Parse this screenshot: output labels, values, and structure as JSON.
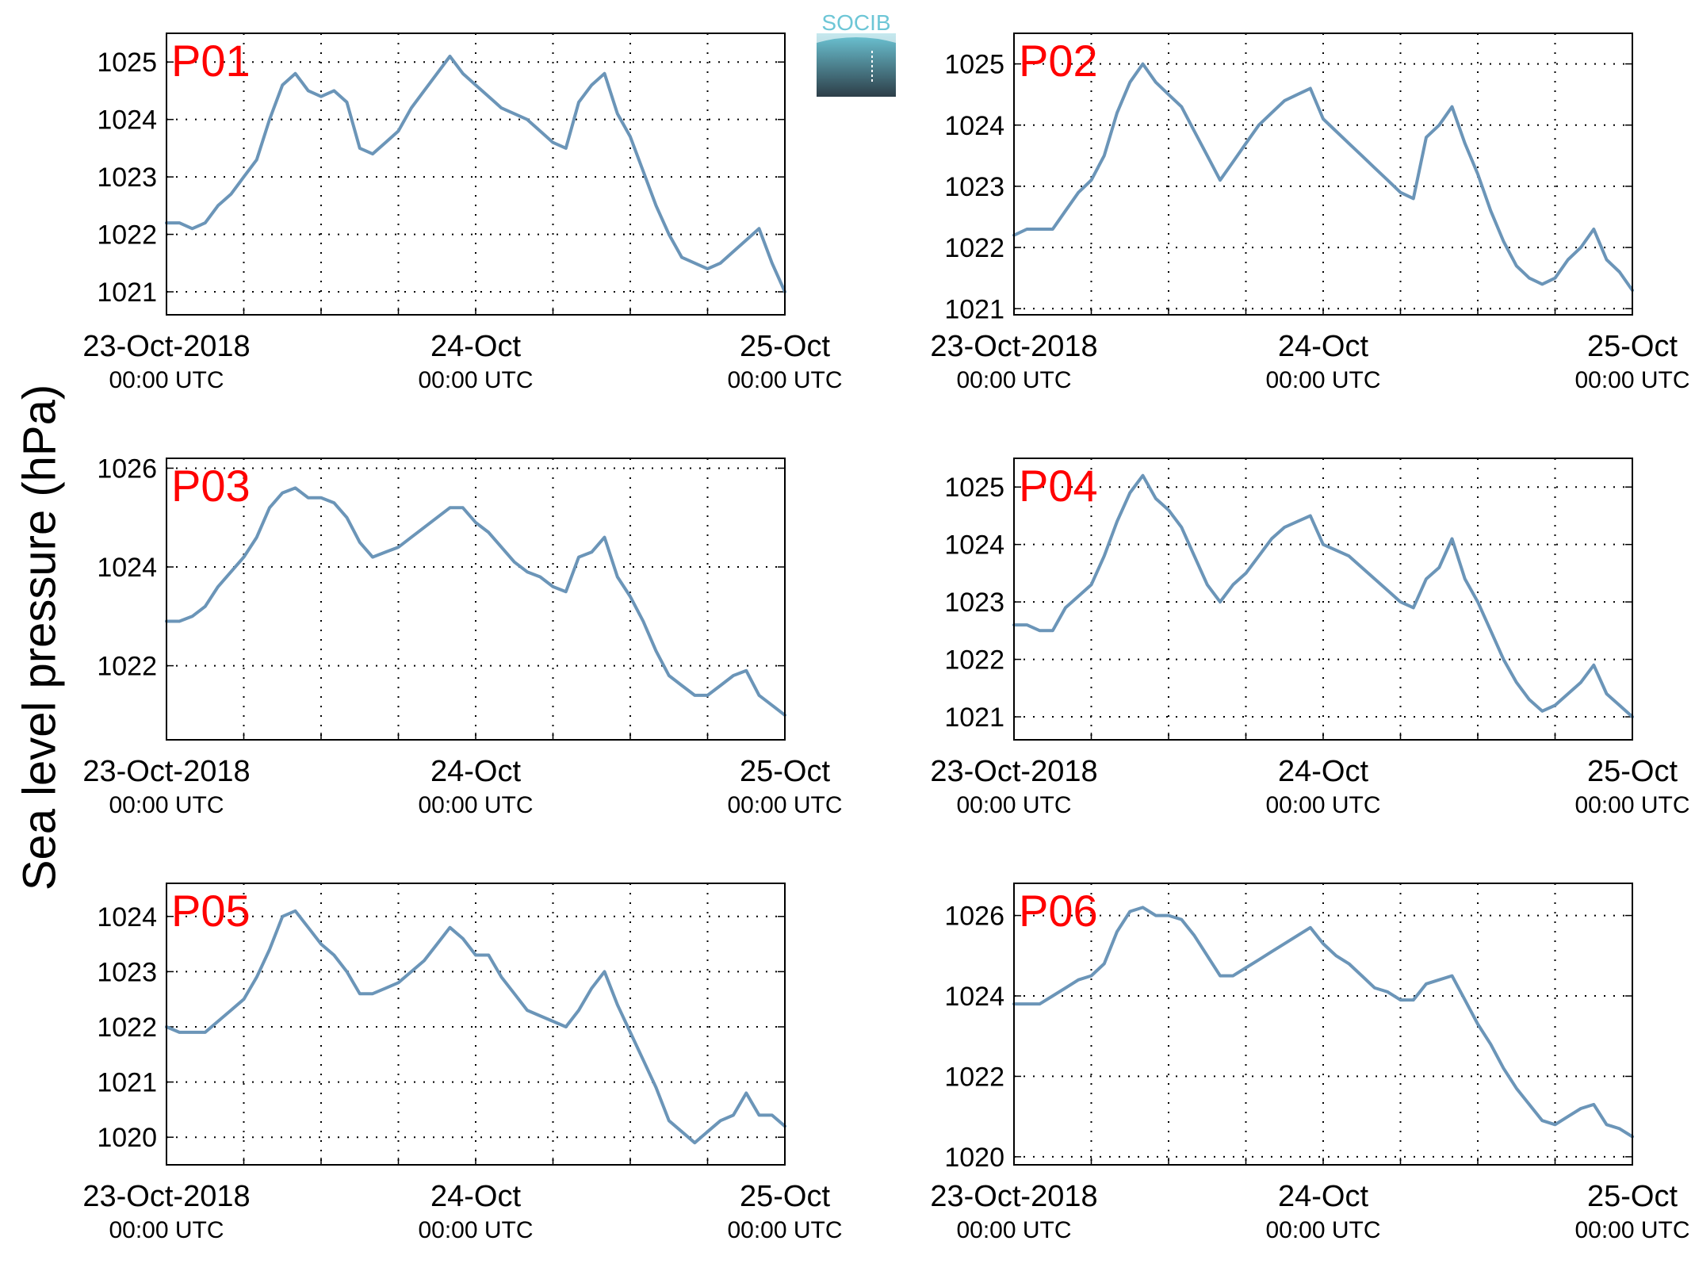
{
  "ylabel": "Sea level pressure (hPa)",
  "logo_text": "SOCIB",
  "colors": {
    "line": "#6b95b8",
    "station_label": "#ff0000",
    "logo_top": "#6dc6d6",
    "logo_bottom": "#2d3e48"
  },
  "x_tick_labels": [
    {
      "line1": "23-Oct-2018",
      "line2": "00:00 UTC"
    },
    {
      "line1": "24-Oct",
      "line2": "00:00 UTC"
    },
    {
      "line1": "25-Oct",
      "line2": "00:00 UTC"
    }
  ],
  "chart_data": [
    {
      "type": "line",
      "title": "P01",
      "xlim": [
        0,
        48
      ],
      "ylim": [
        1020.6,
        1025.5
      ],
      "yticks": [
        1021,
        1022,
        1023,
        1024,
        1025
      ],
      "grid": true,
      "series": [
        {
          "x": [
            0,
            1,
            2,
            3,
            4,
            5,
            6,
            7,
            8,
            9,
            10,
            11,
            12,
            13,
            14,
            15,
            16,
            17,
            18,
            19,
            20,
            21,
            22,
            23,
            24,
            25,
            26,
            27,
            28,
            29,
            30,
            31,
            32,
            33,
            34,
            35,
            36,
            37,
            38,
            39,
            40,
            41,
            42,
            43,
            44,
            45,
            46,
            47,
            48
          ],
          "values": [
            1022.2,
            1022.2,
            1022.1,
            1022.2,
            1022.5,
            1022.7,
            1023.0,
            1023.3,
            1024.0,
            1024.6,
            1024.8,
            1024.5,
            1024.4,
            1024.5,
            1024.3,
            1023.5,
            1023.4,
            1023.6,
            1023.8,
            1024.2,
            1024.5,
            1024.8,
            1025.1,
            1024.8,
            1024.6,
            1024.4,
            1024.2,
            1024.1,
            1024.0,
            1023.8,
            1023.6,
            1023.5,
            1024.3,
            1024.6,
            1024.8,
            1024.1,
            1023.7,
            1023.1,
            1022.5,
            1022.0,
            1021.6,
            1021.5,
            1021.4,
            1021.5,
            1021.7,
            1021.9,
            1022.1,
            1021.5,
            1021.0
          ]
        }
      ]
    },
    {
      "type": "line",
      "title": "P02",
      "xlim": [
        0,
        48
      ],
      "ylim": [
        1020.9,
        1025.5
      ],
      "yticks": [
        1021,
        1022,
        1023,
        1024,
        1025
      ],
      "grid": true,
      "series": [
        {
          "x": [
            0,
            1,
            2,
            3,
            4,
            5,
            6,
            7,
            8,
            9,
            10,
            11,
            12,
            13,
            14,
            15,
            16,
            17,
            18,
            19,
            20,
            21,
            22,
            23,
            24,
            25,
            26,
            27,
            28,
            29,
            30,
            31,
            32,
            33,
            34,
            35,
            36,
            37,
            38,
            39,
            40,
            41,
            42,
            43,
            44,
            45,
            46,
            47,
            48
          ],
          "values": [
            1022.2,
            1022.3,
            1022.3,
            1022.3,
            1022.6,
            1022.9,
            1023.1,
            1023.5,
            1024.2,
            1024.7,
            1025.0,
            1024.7,
            1024.5,
            1024.3,
            1023.9,
            1023.5,
            1023.1,
            1023.4,
            1023.7,
            1024.0,
            1024.2,
            1024.4,
            1024.5,
            1024.6,
            1024.1,
            1023.9,
            1023.7,
            1023.5,
            1023.3,
            1023.1,
            1022.9,
            1022.8,
            1023.8,
            1024.0,
            1024.3,
            1023.7,
            1023.2,
            1022.6,
            1022.1,
            1021.7,
            1021.5,
            1021.4,
            1021.5,
            1021.8,
            1022.0,
            1022.3,
            1021.8,
            1021.6,
            1021.3
          ]
        }
      ]
    },
    {
      "type": "line",
      "title": "P03",
      "xlim": [
        0,
        48
      ],
      "ylim": [
        1020.5,
        1026.2
      ],
      "yticks": [
        1022,
        1024,
        1026
      ],
      "grid": true,
      "series": [
        {
          "x": [
            0,
            1,
            2,
            3,
            4,
            5,
            6,
            7,
            8,
            9,
            10,
            11,
            12,
            13,
            14,
            15,
            16,
            17,
            18,
            19,
            20,
            21,
            22,
            23,
            24,
            25,
            26,
            27,
            28,
            29,
            30,
            31,
            32,
            33,
            34,
            35,
            36,
            37,
            38,
            39,
            40,
            41,
            42,
            43,
            44,
            45,
            46,
            47,
            48
          ],
          "values": [
            1022.9,
            1022.9,
            1023.0,
            1023.2,
            1023.6,
            1023.9,
            1024.2,
            1024.6,
            1025.2,
            1025.5,
            1025.6,
            1025.4,
            1025.4,
            1025.3,
            1025.0,
            1024.5,
            1024.2,
            1024.3,
            1024.4,
            1024.6,
            1024.8,
            1025.0,
            1025.2,
            1025.2,
            1024.9,
            1024.7,
            1024.4,
            1024.1,
            1023.9,
            1023.8,
            1023.6,
            1023.5,
            1024.2,
            1024.3,
            1024.6,
            1023.8,
            1023.4,
            1022.9,
            1022.3,
            1021.8,
            1021.6,
            1021.4,
            1021.4,
            1021.6,
            1021.8,
            1021.9,
            1021.4,
            1021.2,
            1021.0
          ]
        }
      ]
    },
    {
      "type": "line",
      "title": "P04",
      "xlim": [
        0,
        48
      ],
      "ylim": [
        1020.6,
        1025.5
      ],
      "yticks": [
        1021,
        1022,
        1023,
        1024,
        1025
      ],
      "grid": true,
      "series": [
        {
          "x": [
            0,
            1,
            2,
            3,
            4,
            5,
            6,
            7,
            8,
            9,
            10,
            11,
            12,
            13,
            14,
            15,
            16,
            17,
            18,
            19,
            20,
            21,
            22,
            23,
            24,
            25,
            26,
            27,
            28,
            29,
            30,
            31,
            32,
            33,
            34,
            35,
            36,
            37,
            38,
            39,
            40,
            41,
            42,
            43,
            44,
            45,
            46,
            47,
            48
          ],
          "values": [
            1022.6,
            1022.6,
            1022.5,
            1022.5,
            1022.9,
            1023.1,
            1023.3,
            1023.8,
            1024.4,
            1024.9,
            1025.2,
            1024.8,
            1024.6,
            1024.3,
            1023.8,
            1023.3,
            1023.0,
            1023.3,
            1023.5,
            1023.8,
            1024.1,
            1024.3,
            1024.4,
            1024.5,
            1024.0,
            1023.9,
            1023.8,
            1023.6,
            1023.4,
            1023.2,
            1023.0,
            1022.9,
            1023.4,
            1023.6,
            1024.1,
            1023.4,
            1023.0,
            1022.5,
            1022.0,
            1021.6,
            1021.3,
            1021.1,
            1021.2,
            1021.4,
            1021.6,
            1021.9,
            1021.4,
            1021.2,
            1021.0
          ]
        }
      ]
    },
    {
      "type": "line",
      "title": "P05",
      "xlim": [
        0,
        48
      ],
      "ylim": [
        1019.5,
        1024.6
      ],
      "yticks": [
        1020,
        1021,
        1022,
        1023,
        1024
      ],
      "grid": true,
      "series": [
        {
          "x": [
            0,
            1,
            2,
            3,
            4,
            5,
            6,
            7,
            8,
            9,
            10,
            11,
            12,
            13,
            14,
            15,
            16,
            17,
            18,
            19,
            20,
            21,
            22,
            23,
            24,
            25,
            26,
            27,
            28,
            29,
            30,
            31,
            32,
            33,
            34,
            35,
            36,
            37,
            38,
            39,
            40,
            41,
            42,
            43,
            44,
            45,
            46,
            47,
            48
          ],
          "values": [
            1022.0,
            1021.9,
            1021.9,
            1021.9,
            1022.1,
            1022.3,
            1022.5,
            1022.9,
            1023.4,
            1024.0,
            1024.1,
            1023.8,
            1023.5,
            1023.3,
            1023.0,
            1022.6,
            1022.6,
            1022.7,
            1022.8,
            1023.0,
            1023.2,
            1023.5,
            1023.8,
            1023.6,
            1023.3,
            1023.3,
            1022.9,
            1022.6,
            1022.3,
            1022.2,
            1022.1,
            1022.0,
            1022.3,
            1022.7,
            1023.0,
            1022.4,
            1021.9,
            1021.4,
            1020.9,
            1020.3,
            1020.1,
            1019.9,
            1020.1,
            1020.3,
            1020.4,
            1020.8,
            1020.4,
            1020.4,
            1020.2
          ]
        }
      ]
    },
    {
      "type": "line",
      "title": "P06",
      "xlim": [
        0,
        48
      ],
      "ylim": [
        1019.8,
        1026.8
      ],
      "yticks": [
        1020,
        1022,
        1024,
        1026
      ],
      "grid": true,
      "series": [
        {
          "x": [
            0,
            1,
            2,
            3,
            4,
            5,
            6,
            7,
            8,
            9,
            10,
            11,
            12,
            13,
            14,
            15,
            16,
            17,
            18,
            19,
            20,
            21,
            22,
            23,
            24,
            25,
            26,
            27,
            28,
            29,
            30,
            31,
            32,
            33,
            34,
            35,
            36,
            37,
            38,
            39,
            40,
            41,
            42,
            43,
            44,
            45,
            46,
            47,
            48
          ],
          "values": [
            1023.8,
            1023.8,
            1023.8,
            1024.0,
            1024.2,
            1024.4,
            1024.5,
            1024.8,
            1025.6,
            1026.1,
            1026.2,
            1026.0,
            1026.0,
            1025.9,
            1025.5,
            1025.0,
            1024.5,
            1024.5,
            1024.7,
            1024.9,
            1025.1,
            1025.3,
            1025.5,
            1025.7,
            1025.3,
            1025.0,
            1024.8,
            1024.5,
            1024.2,
            1024.1,
            1023.9,
            1023.9,
            1024.3,
            1024.4,
            1024.5,
            1023.9,
            1023.3,
            1022.8,
            1022.2,
            1021.7,
            1021.3,
            1020.9,
            1020.8,
            1021.0,
            1021.2,
            1021.3,
            1020.8,
            1020.7,
            1020.5
          ]
        }
      ]
    }
  ]
}
